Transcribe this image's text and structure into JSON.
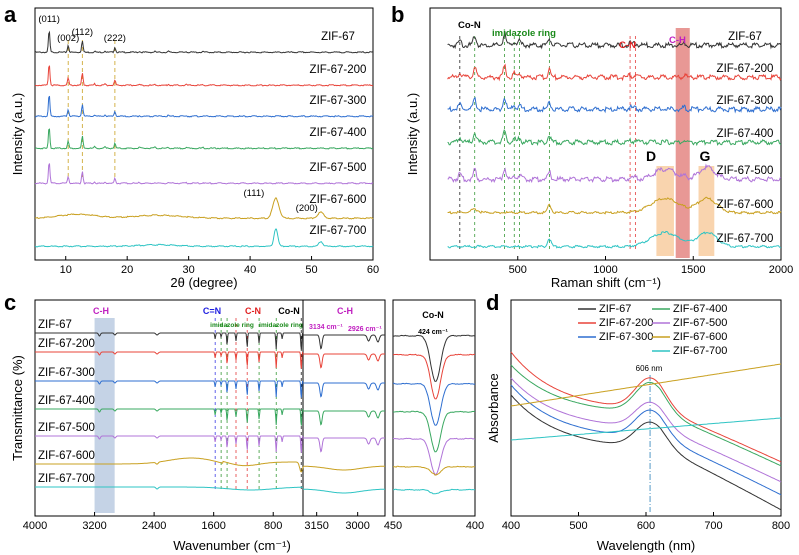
{
  "colors": {
    "ZIF-67": "#333333",
    "ZIF-67-200": "#e8443a",
    "ZIF-67-300": "#2f6fd0",
    "ZIF-67-400": "#3aa860",
    "ZIF-67-500": "#b074d8",
    "ZIF-67-600": "#c9a020",
    "ZIF-67-700": "#2ec4c4",
    "co_n": "#000000",
    "imidazole": "#1a8a1a",
    "c_n": "#e02020",
    "c_h": "#c020c0",
    "c_eq_n": "#2020e0",
    "band_ch_raman": "#d9534f",
    "band_dg": "#f7c99a",
    "band_ch_ftir": "#b7c8e0",
    "dashdot": "#2a7fb8"
  },
  "chart_data": [
    {
      "panel": "a",
      "type": "line",
      "xlabel": "2θ (degree)",
      "ylabel": "Intensity (a.u.)",
      "xlim": [
        5,
        60
      ],
      "xticks": [
        "10",
        "20",
        "30",
        "40",
        "50",
        "60"
      ],
      "series": [
        "ZIF-67",
        "ZIF-67-200",
        "ZIF-67-300",
        "ZIF-67-400",
        "ZIF-67-500",
        "ZIF-67-600",
        "ZIF-67-700"
      ],
      "peaks_zif": [
        {
          "x": 7.3,
          "label": "(011)"
        },
        {
          "x": 10.4,
          "label": "(002)"
        },
        {
          "x": 12.7,
          "label": "(112)"
        },
        {
          "x": 18.0,
          "label": "(222)"
        }
      ],
      "peaks_co": [
        {
          "x": 44.2,
          "label": "(111)"
        },
        {
          "x": 51.5,
          "label": "(200)"
        }
      ]
    },
    {
      "panel": "b",
      "type": "line",
      "xlabel": "Raman shift (cm⁻¹)",
      "ylabel": "Intensity (a.u.)",
      "xlim": [
        0,
        2000
      ],
      "xticks": [
        "500",
        "1000",
        "1500",
        "2000"
      ],
      "series": [
        "ZIF-67",
        "ZIF-67-200",
        "ZIF-67-300",
        "ZIF-67-400",
        "ZIF-67-500",
        "ZIF-67-600",
        "ZIF-67-700"
      ],
      "annotations": {
        "co_n": "Co-N",
        "imidazole": "imidazole ring",
        "c_n": "C-N",
        "c_h": "C-H",
        "d_band": "D",
        "g_band": "G"
      },
      "dashed_positions": [
        170,
        255,
        425,
        680,
        1140,
        1170
      ]
    },
    {
      "panel": "c",
      "type": "line",
      "xlabel": "Wavenumber (cm⁻¹)",
      "ylabel": "Transmittance (%)",
      "xlim_main": [
        4000,
        400
      ],
      "xticks_main": [
        "4000",
        "3200",
        "2400",
        "1600",
        "800"
      ],
      "xlim_zoom1": [
        3200,
        2900
      ],
      "xticks_zoom1": [
        "3150",
        "3000"
      ],
      "xlim_zoom2": [
        450,
        400
      ],
      "xticks_zoom2": [
        "450",
        "400"
      ],
      "series": [
        "ZIF-67",
        "ZIF-67-200",
        "ZIF-67-300",
        "ZIF-67-400",
        "ZIF-67-500",
        "ZIF-67-600",
        "ZIF-67-700"
      ],
      "annotations": {
        "c_h": "C-H",
        "c_eq_n": "C=N",
        "c_n": "C-N",
        "co_n": "Co-N",
        "imidazole": "imidazole ring",
        "peak_3134": "3134 cm⁻¹",
        "peak_2926": "2926 cm⁻¹",
        "peak_424": "424 cm⁻¹"
      }
    },
    {
      "panel": "d",
      "type": "line",
      "xlabel": "Wavelength (nm)",
      "ylabel": "Absorbance",
      "xlim": [
        400,
        800
      ],
      "xticks": [
        "400",
        "500",
        "600",
        "700",
        "800"
      ],
      "series": [
        "ZIF-67",
        "ZIF-67-200",
        "ZIF-67-300",
        "ZIF-67-400",
        "ZIF-67-500",
        "ZIF-67-600",
        "ZIF-67-700"
      ],
      "annotation": "606 nm"
    }
  ],
  "panels": {
    "a": "a",
    "b": "b",
    "c": "c",
    "d": "d"
  }
}
